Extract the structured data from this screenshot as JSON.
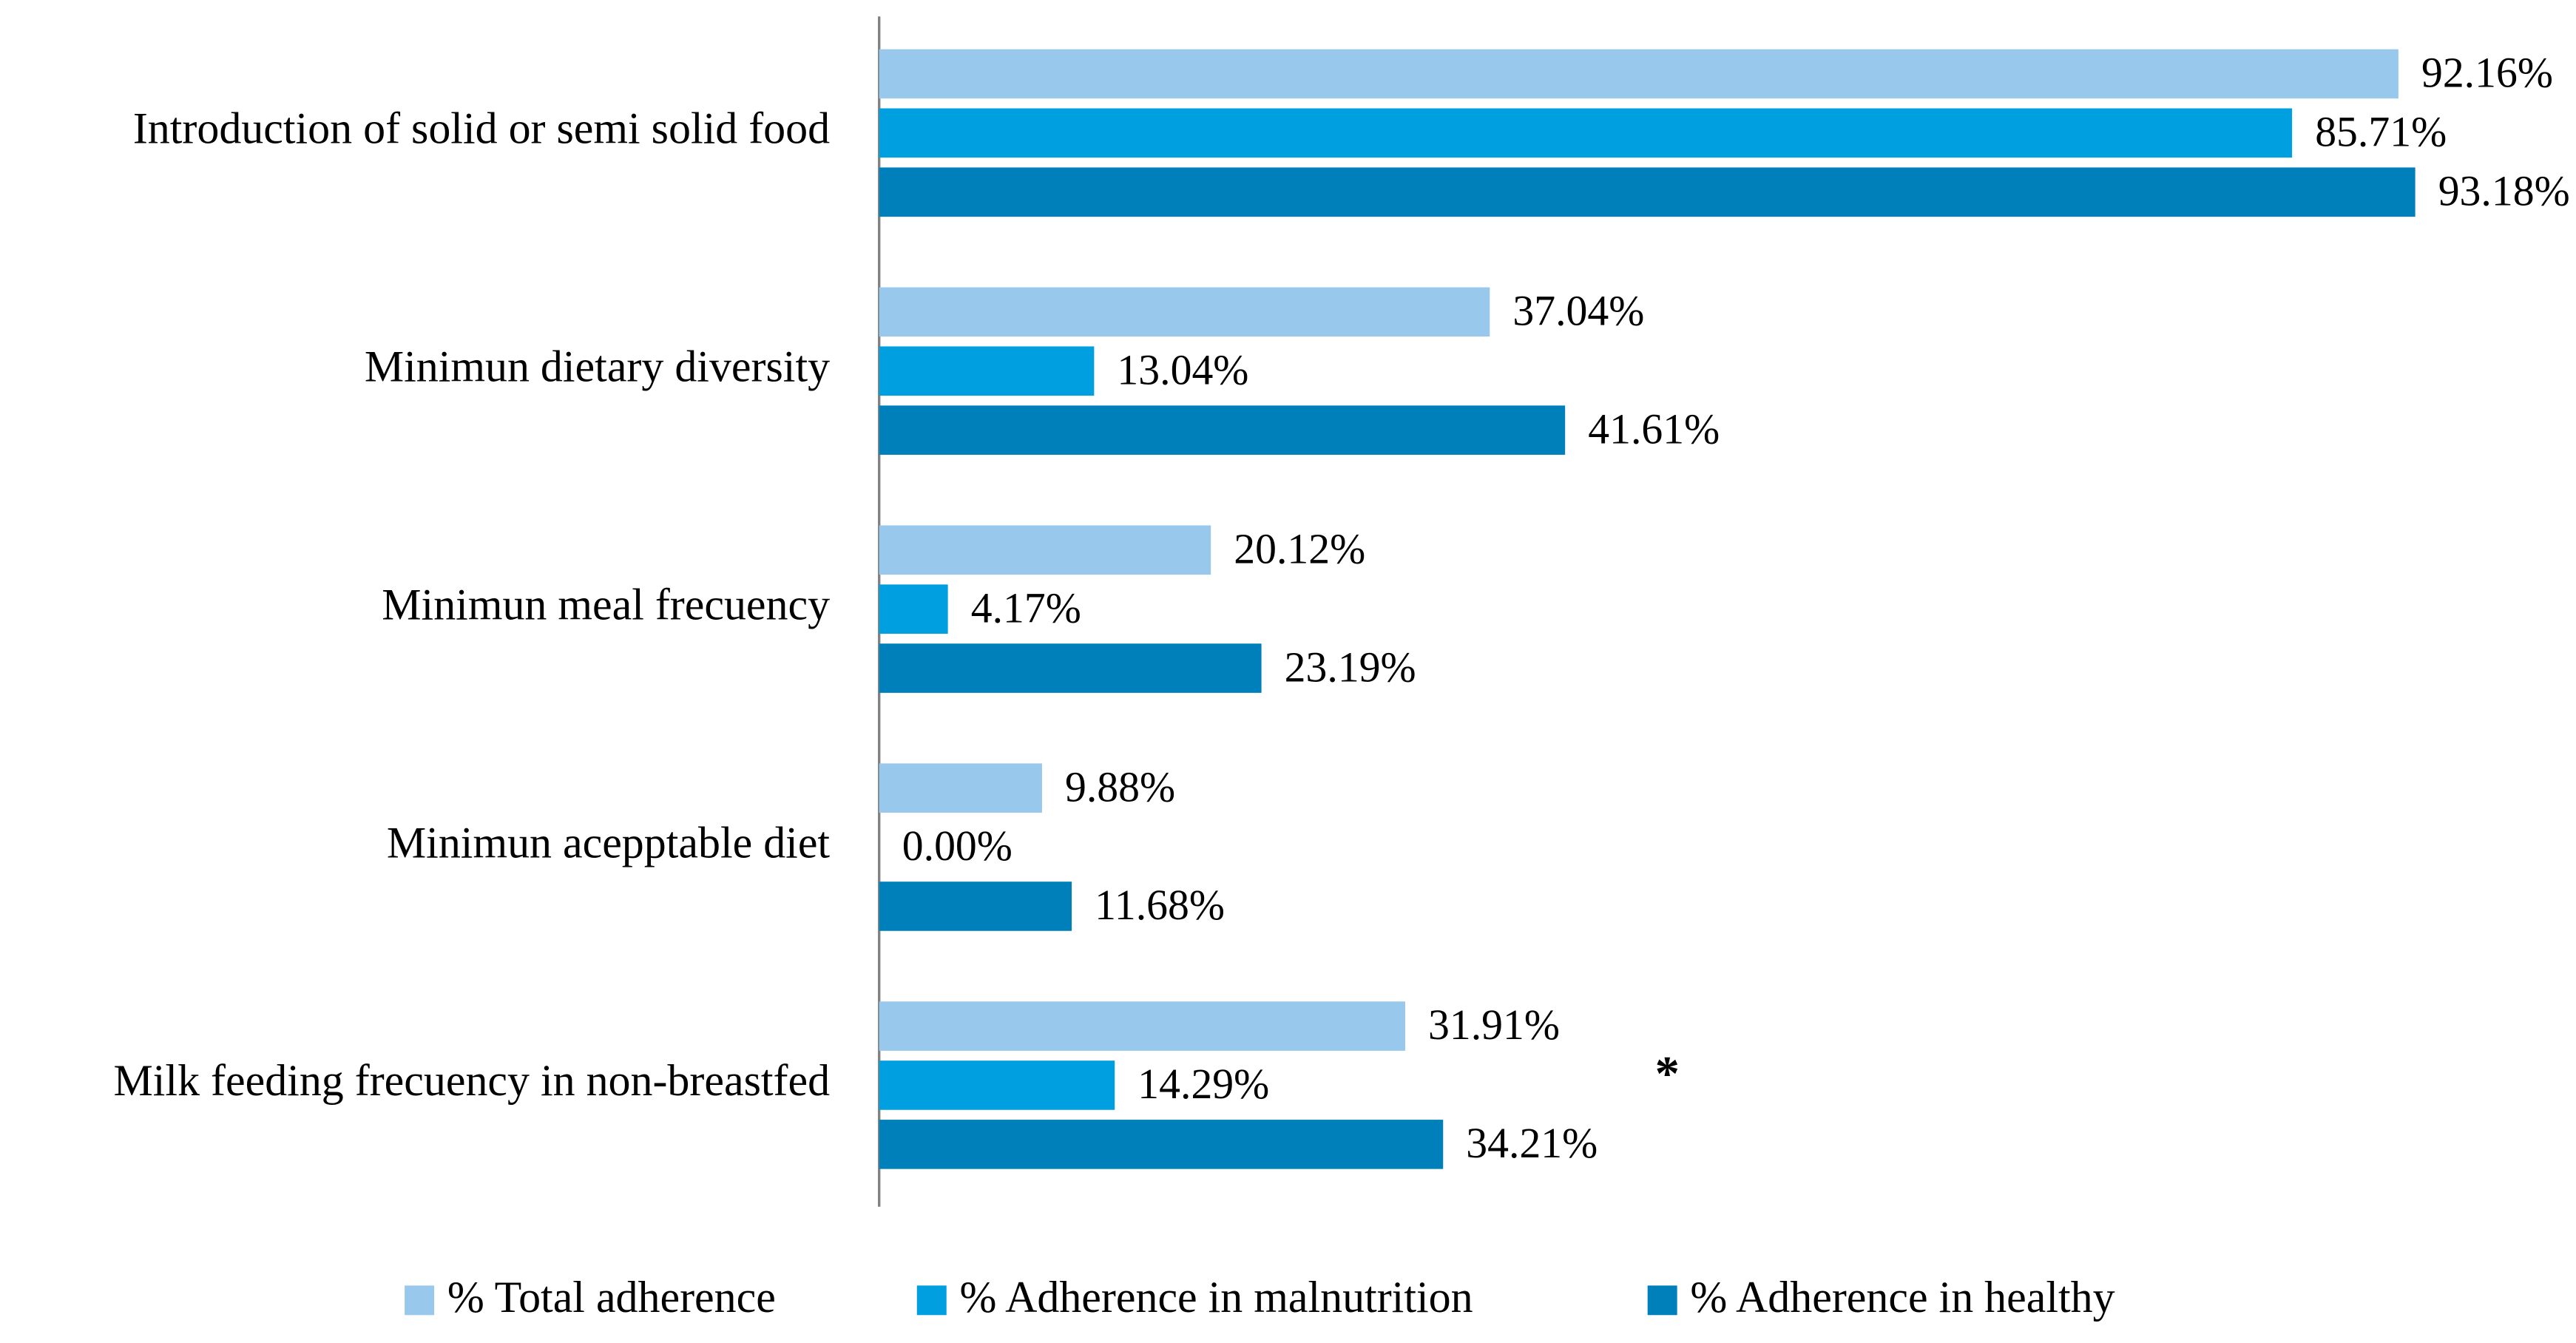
{
  "chart_data": {
    "type": "hbar",
    "categories": [
      "Introduction of solid or semi solid food",
      "Minimun dietary diversity",
      "Minimun meal frecuency",
      "Minimun acepptable diet",
      "Milk feeding frecuency in non-breastfed"
    ],
    "series": [
      {
        "name": "% Total adherence",
        "color": "#98c8ec",
        "values": [
          92.16,
          37.04,
          20.12,
          9.88,
          31.91
        ],
        "value_labels": [
          "92.16%",
          "37.04%",
          "20.12%",
          "9.88%",
          "31.91%"
        ]
      },
      {
        "name": "% Adherence in malnutrition",
        "color": "#009fdf",
        "values": [
          85.71,
          13.04,
          4.17,
          0.0,
          14.29
        ],
        "value_labels": [
          "85.71%",
          "13.04%",
          "4.17%",
          "0.00%",
          "14.29%"
        ]
      },
      {
        "name": "% Adherence in healthy",
        "color": "#0080bb",
        "values": [
          93.18,
          41.61,
          23.19,
          11.68,
          34.21
        ],
        "value_labels": [
          "93.18%",
          "41.61%",
          "23.19%",
          "11.68%",
          "34.21%"
        ]
      }
    ],
    "xlim": [
      0,
      100
    ],
    "annotation": "*",
    "legend": "bottom"
  }
}
